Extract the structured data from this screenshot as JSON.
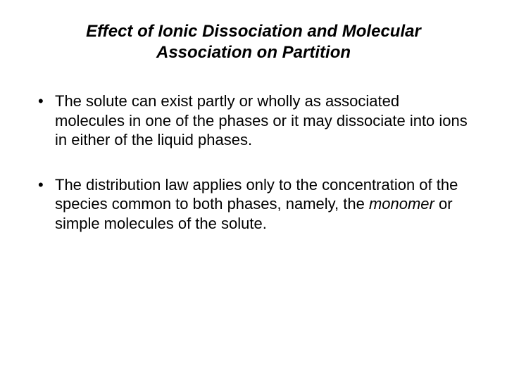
{
  "slide": {
    "title": "Effect of Ionic Dissociation and Molecular Association on Partition",
    "bullets": [
      {
        "text": "The solute can exist partly or wholly as associated molecules in one of the phases or it may dissociate into ions in either of the liquid phases."
      },
      {
        "prefix": "The distribution law applies only to the concentration of the species common to both phases, namely, the ",
        "emph": "monomer",
        "suffix": " or simple molecules of the solute."
      }
    ],
    "colors": {
      "background": "#ffffff",
      "text": "#000000"
    },
    "typography": {
      "title_fontsize": 24,
      "body_fontsize": 22,
      "font_family": "Arial"
    }
  }
}
